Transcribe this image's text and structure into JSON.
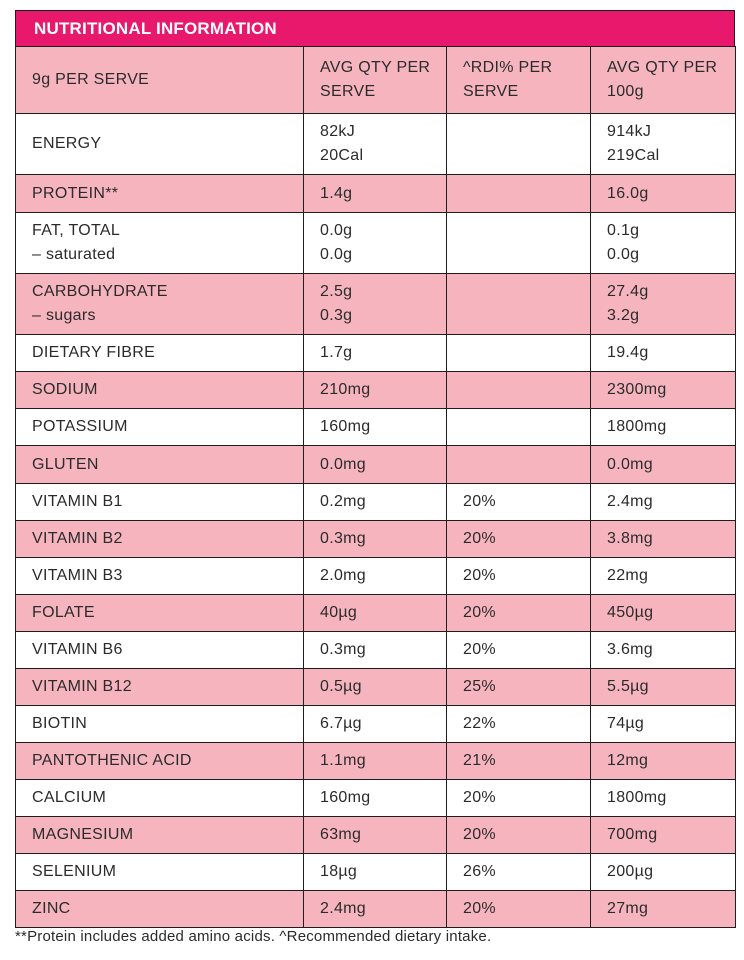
{
  "title": "NUTRITIONAL INFORMATION",
  "header": {
    "serve": "9g PER SERVE",
    "avg_serve": "AVG QTY PER SERVE",
    "rdi": "^RDI% PER SERVE",
    "avg_100g": "AVG QTY PER 100g"
  },
  "rows": [
    {
      "name": "ENERGY",
      "sub": "",
      "serve": "82kJ",
      "serve2": "20Cal",
      "rdi": "",
      "per100": "914kJ",
      "per100_2": "219Cal"
    },
    {
      "name": "PROTEIN**",
      "sub": "",
      "serve": "1.4g",
      "serve2": "",
      "rdi": "",
      "per100": "16.0g",
      "per100_2": ""
    },
    {
      "name": "FAT, TOTAL",
      "sub": "– saturated",
      "serve": "0.0g",
      "serve2": "0.0g",
      "rdi": "",
      "per100": "0.1g",
      "per100_2": "0.0g"
    },
    {
      "name": "CARBOHYDRATE",
      "sub": "– sugars",
      "serve": "2.5g",
      "serve2": "0.3g",
      "rdi": "",
      "per100": "27.4g",
      "per100_2": "3.2g"
    },
    {
      "name": "DIETARY FIBRE",
      "sub": "",
      "serve": "1.7g",
      "serve2": "",
      "rdi": "",
      "per100": "19.4g",
      "per100_2": ""
    },
    {
      "name": "SODIUM",
      "sub": "",
      "serve": "210mg",
      "serve2": "",
      "rdi": "",
      "per100": "2300mg",
      "per100_2": ""
    },
    {
      "name": "POTASSIUM",
      "sub": "",
      "serve": "160mg",
      "serve2": "",
      "rdi": "",
      "per100": "1800mg",
      "per100_2": ""
    },
    {
      "name": "GLUTEN",
      "sub": "",
      "serve": "0.0mg",
      "serve2": "",
      "rdi": "",
      "per100": "0.0mg",
      "per100_2": ""
    },
    {
      "name": "VITAMIN B1",
      "sub": "",
      "serve": "0.2mg",
      "serve2": "",
      "rdi": "20%",
      "per100": "2.4mg",
      "per100_2": ""
    },
    {
      "name": "VITAMIN B2",
      "sub": "",
      "serve": "0.3mg",
      "serve2": "",
      "rdi": "20%",
      "per100": "3.8mg",
      "per100_2": ""
    },
    {
      "name": "VITAMIN B3",
      "sub": "",
      "serve": "2.0mg",
      "serve2": "",
      "rdi": "20%",
      "per100": "22mg",
      "per100_2": ""
    },
    {
      "name": "FOLATE",
      "sub": "",
      "serve": "40µg",
      "serve2": "",
      "rdi": "20%",
      "per100": "450µg",
      "per100_2": ""
    },
    {
      "name": "VITAMIN B6",
      "sub": "",
      "serve": "0.3mg",
      "serve2": "",
      "rdi": "20%",
      "per100": "3.6mg",
      "per100_2": ""
    },
    {
      "name": "VITAMIN B12",
      "sub": "",
      "serve": "0.5µg",
      "serve2": "",
      "rdi": "25%",
      "per100": "5.5µg",
      "per100_2": ""
    },
    {
      "name": "BIOTIN",
      "sub": "",
      "serve": "6.7µg",
      "serve2": "",
      "rdi": "22%",
      "per100": "74µg",
      "per100_2": ""
    },
    {
      "name": "PANTOTHENIC ACID",
      "sub": "",
      "serve": "1.1mg",
      "serve2": "",
      "rdi": "21%",
      "per100": "12mg",
      "per100_2": ""
    },
    {
      "name": "CALCIUM",
      "sub": "",
      "serve": "160mg",
      "serve2": "",
      "rdi": "20%",
      "per100": "1800mg",
      "per100_2": ""
    },
    {
      "name": "MAGNESIUM",
      "sub": "",
      "serve": "63mg",
      "serve2": "",
      "rdi": "20%",
      "per100": "700mg",
      "per100_2": ""
    },
    {
      "name": "SELENIUM",
      "sub": "",
      "serve": "18µg",
      "serve2": "",
      "rdi": "26%",
      "per100": "200µg",
      "per100_2": ""
    },
    {
      "name": "ZINC",
      "sub": "",
      "serve": "2.4mg",
      "serve2": "",
      "rdi": "20%",
      "per100": "27mg",
      "per100_2": ""
    }
  ],
  "footnote": "**Protein includes added amino acids. ^Recommended dietary intake.",
  "colors": {
    "title_bg": "#e8196c",
    "pink_row": "#f6b5be",
    "white_row": "#ffffff",
    "border": "#1e1e1e"
  }
}
